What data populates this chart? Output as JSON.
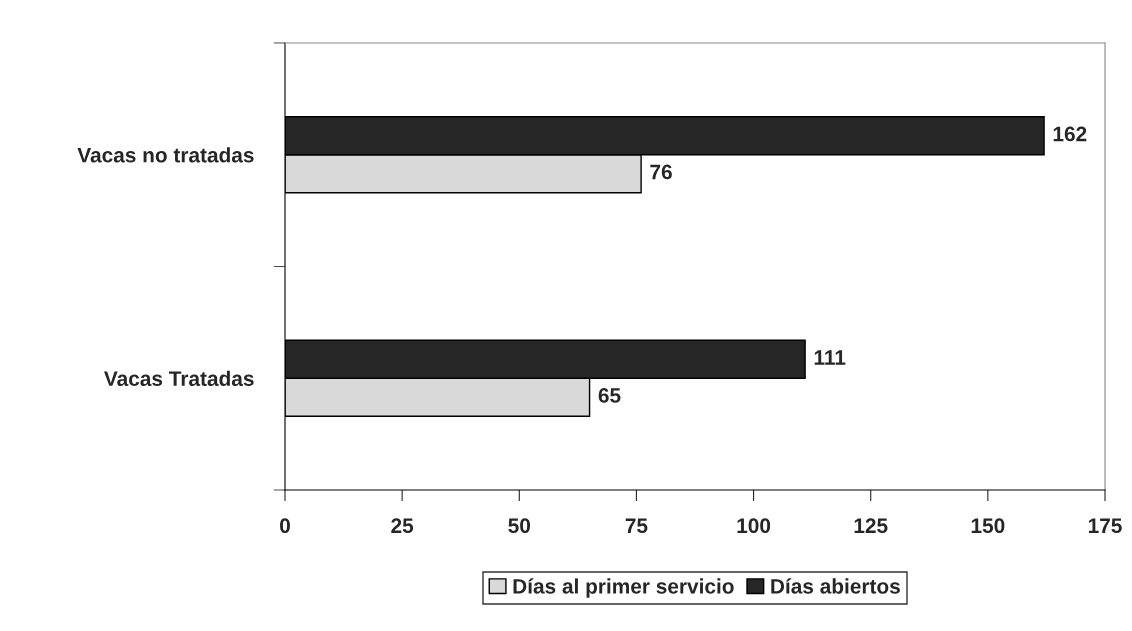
{
  "chart_data": {
    "type": "bar",
    "orientation": "horizontal",
    "categories": [
      "Vacas no tratadas",
      "Vacas Tratadas"
    ],
    "series": [
      {
        "name": "Días al primer servicio",
        "color": "#d9d9d9",
        "values": [
          76,
          65
        ]
      },
      {
        "name": "Días abiertos",
        "color": "#262626",
        "values": [
          162,
          111
        ]
      }
    ],
    "xlim": [
      0,
      175
    ],
    "xticks": [
      0,
      25,
      50,
      75,
      100,
      125,
      150,
      175
    ],
    "data_labels": true,
    "grid": false,
    "legend": "bottom"
  }
}
